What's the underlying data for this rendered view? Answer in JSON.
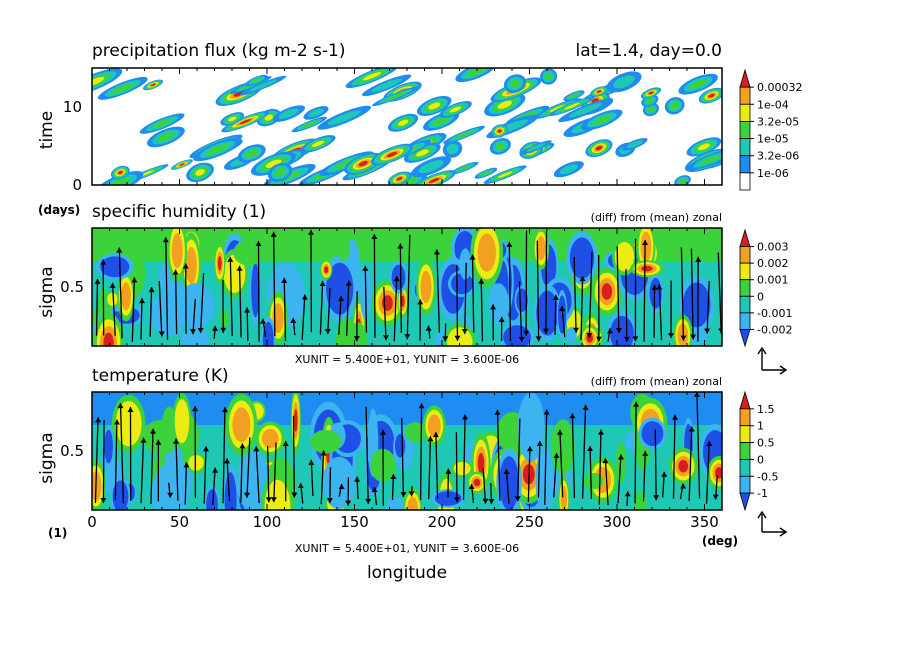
{
  "figure": {
    "header_right": "lat=1.4, day=0.0",
    "xlabel": "longitude",
    "x_unit": "(deg)",
    "y_unit_bottom": "(1)",
    "x_ticks": [
      "0",
      "50",
      "100",
      "150",
      "200",
      "250",
      "300",
      "350"
    ],
    "x_range": [
      0,
      360
    ]
  },
  "chart_data": [
    {
      "type": "heatmap",
      "title": "precipitation flux (kg m-2 s-1)",
      "ylabel": "time",
      "y_unit": "(days)",
      "ylim": [
        0,
        15
      ],
      "y_ticks": [
        "0",
        "10"
      ],
      "legend": {
        "levels": [
          "0.00032",
          "1e-04",
          "3.2e-05",
          "1e-05",
          "3.2e-06",
          "1e-06"
        ],
        "colors": [
          "#d81e1e",
          "#f2a020",
          "#ecec14",
          "#3cd23c",
          "#1ec8b4",
          "#1e8cf0",
          "#ffffff"
        ]
      }
    },
    {
      "type": "heatmap",
      "title": "specific humidity (1)",
      "subtitle": "(diff) from (mean) zonal",
      "ylabel": "sigma",
      "ylim": [
        0,
        1
      ],
      "y_ticks": [
        "0.5"
      ],
      "vector_scale": "XUNIT = 5.400E+01, YUNIT = 3.600E-06",
      "legend": {
        "levels": [
          "0.003",
          "0.002",
          "0.001",
          "0",
          "-0.001",
          "-0.002"
        ],
        "colors": [
          "#d81e1e",
          "#f2a020",
          "#ecec14",
          "#3cd23c",
          "#1ec8b4",
          "#3cb4f0",
          "#1e50e6"
        ]
      }
    },
    {
      "type": "heatmap",
      "title": "temperature (K)",
      "subtitle": "(diff) from (mean) zonal",
      "ylabel": "sigma",
      "ylim": [
        0,
        1
      ],
      "y_ticks": [
        "0.5"
      ],
      "vector_scale": "XUNIT = 5.400E+01, YUNIT = 3.600E-06",
      "legend": {
        "levels": [
          "1.5",
          "1",
          "0.5",
          "0",
          "-0.5",
          "-1"
        ],
        "colors": [
          "#d81e1e",
          "#f2a020",
          "#ecec14",
          "#3cd23c",
          "#1ec8b4",
          "#3cb4f0",
          "#1e50e6"
        ]
      }
    }
  ]
}
